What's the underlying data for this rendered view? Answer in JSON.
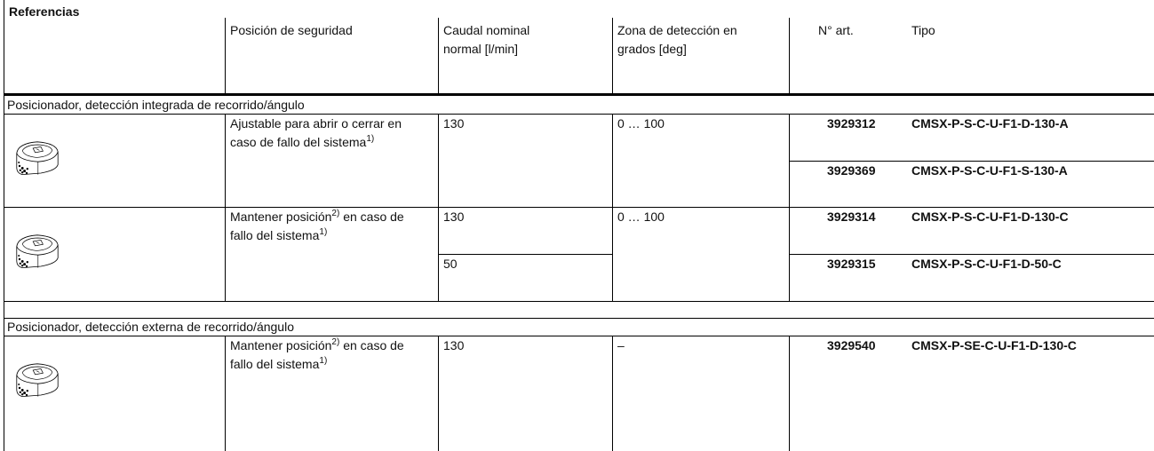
{
  "title": "Referencias",
  "header": [
    "Posición de seguridad",
    "Caudal nominal normal [l/min]",
    "Zona de detección en grados [deg]",
    "N° art.",
    "Tipo"
  ],
  "sections": [
    {
      "label": "Posicionador, detección integrada de recorrido/ángulo",
      "rows": [
        {
          "safety": [
            "Ajustable para abrir o cerrar en caso de fallo del sistema",
            "1)"
          ],
          "flows": [
            "130"
          ],
          "range": "0 … 100",
          "items": [
            {
              "art": "3929312",
              "type": "CMSX-P-S-C-U-F1-D-130-A"
            },
            {
              "art": "3929369",
              "type": "CMSX-P-S-C-U-F1-S-130-A"
            }
          ]
        },
        {
          "safety": [
            "Mantener posición",
            "2)",
            " en caso de fallo del sistema",
            "1)"
          ],
          "flows": [
            "130",
            "50"
          ],
          "range": "0 … 100",
          "items": [
            {
              "art": "3929314",
              "type": "CMSX-P-S-C-U-F1-D-130-C"
            },
            {
              "art": "3929315",
              "type": "CMSX-P-S-C-U-F1-D-50-C"
            }
          ]
        }
      ]
    },
    {
      "label": "Posicionador, detección externa de recorrido/ángulo",
      "rows": [
        {
          "safety": [
            "Mantener posición",
            "2)",
            " en caso de fallo del sistema",
            "1)"
          ],
          "flows": [
            "130"
          ],
          "range": "–",
          "items": [
            {
              "art": "3929540",
              "type": "CMSX-P-SE-C-U-F1-D-130-C"
            }
          ]
        }
      ]
    }
  ]
}
